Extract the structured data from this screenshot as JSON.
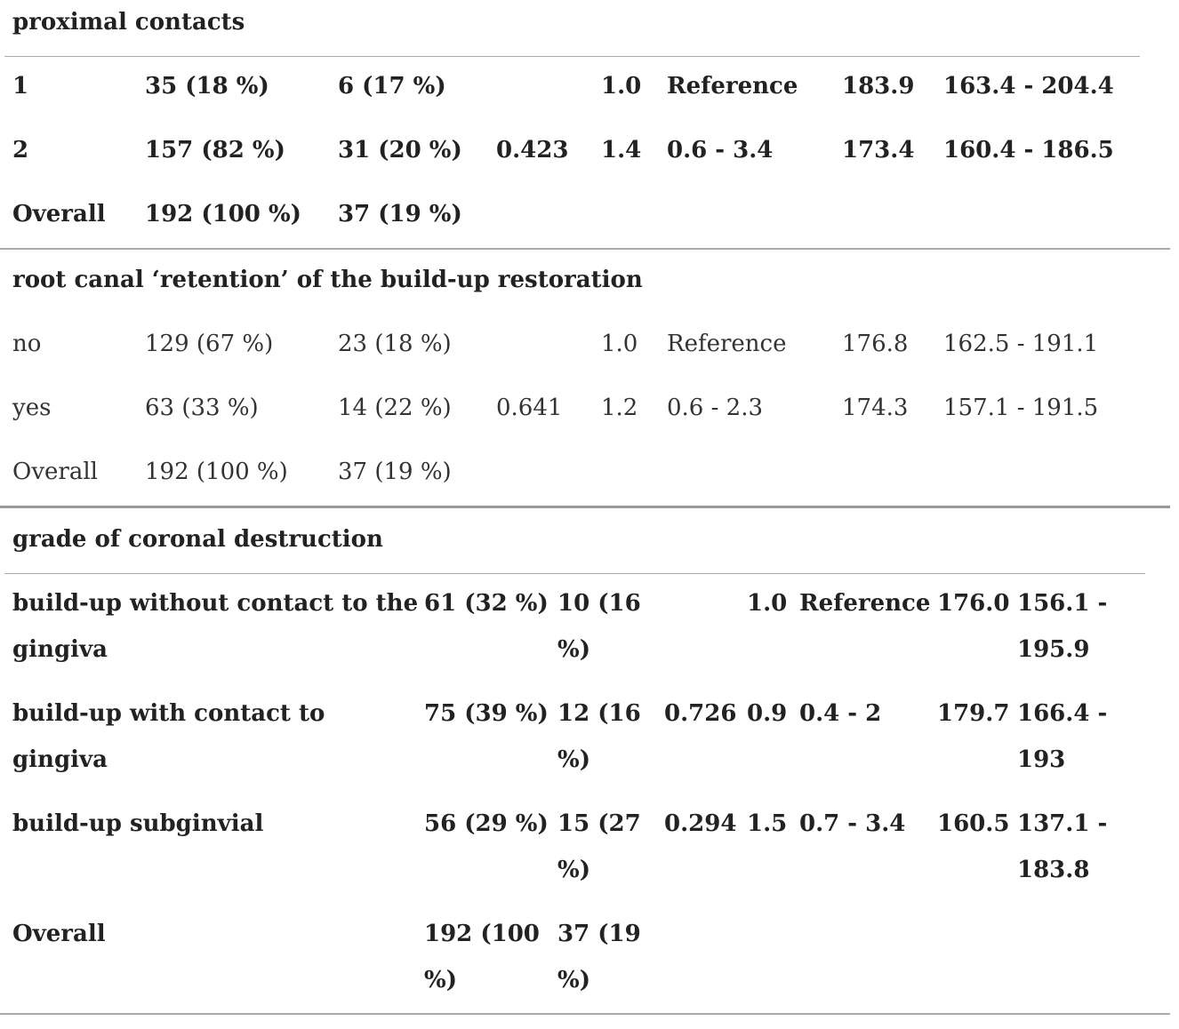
{
  "sections": [
    {
      "title": "proximal contacts",
      "rows": [
        [
          "1",
          "35 (18 %)",
          "6 (17 %)",
          null,
          "1.0",
          "Reference",
          "183.9",
          "163.4 - 204.4"
        ],
        [
          "2",
          "157 (82 %)",
          "31 (20 %)",
          "0.423",
          "1.4",
          "0.6 - 3.4",
          "173.4",
          "160.4 - 186.5"
        ],
        [
          "Overall",
          "192 (100 %)",
          "37 (19 %)",
          null,
          null,
          null,
          null,
          null
        ]
      ]
    },
    {
      "title": "root canal ‘retention’ of the build-up restoration",
      "rows": [
        [
          "no",
          "129 (67 %)",
          "23 (18 %)",
          null,
          "1.0",
          "Reference",
          "176.8",
          "162.5 - 191.1"
        ],
        [
          "yes",
          "63 (33 %)",
          "14 (22 %)",
          "0.641",
          "1.2",
          "0.6 - 2.3",
          "174.3",
          "157.1 - 191.5"
        ],
        [
          "Overall",
          "192 (100 %)",
          "37 (19 %)",
          null,
          null,
          null,
          null,
          null
        ]
      ]
    },
    {
      "title": "grade of coronal destruction",
      "rows": [
        [
          "build-up without contact to the gingiva",
          "61 (32 %)",
          "10 (16 %)",
          null,
          "1.0",
          "Reference",
          "176.0",
          "156.1 - 195.9"
        ],
        [
          "build-up with contact to gingiva",
          "75 (39 %)",
          "12 (16 %)",
          "0.726",
          "0.9",
          "0.4 - 2",
          "179.7",
          "166.4 - 193"
        ],
        [
          "build-up subginvial",
          "56 (29 %)",
          "15 (27 %)",
          "0.294",
          "1.5",
          "0.7 - 3.4",
          "160.5",
          "137.1 - 183.8"
        ],
        [
          "Overall",
          "192 (100 %)",
          "37 (19 %)",
          null,
          null,
          null,
          null,
          null
        ]
      ]
    }
  ]
}
